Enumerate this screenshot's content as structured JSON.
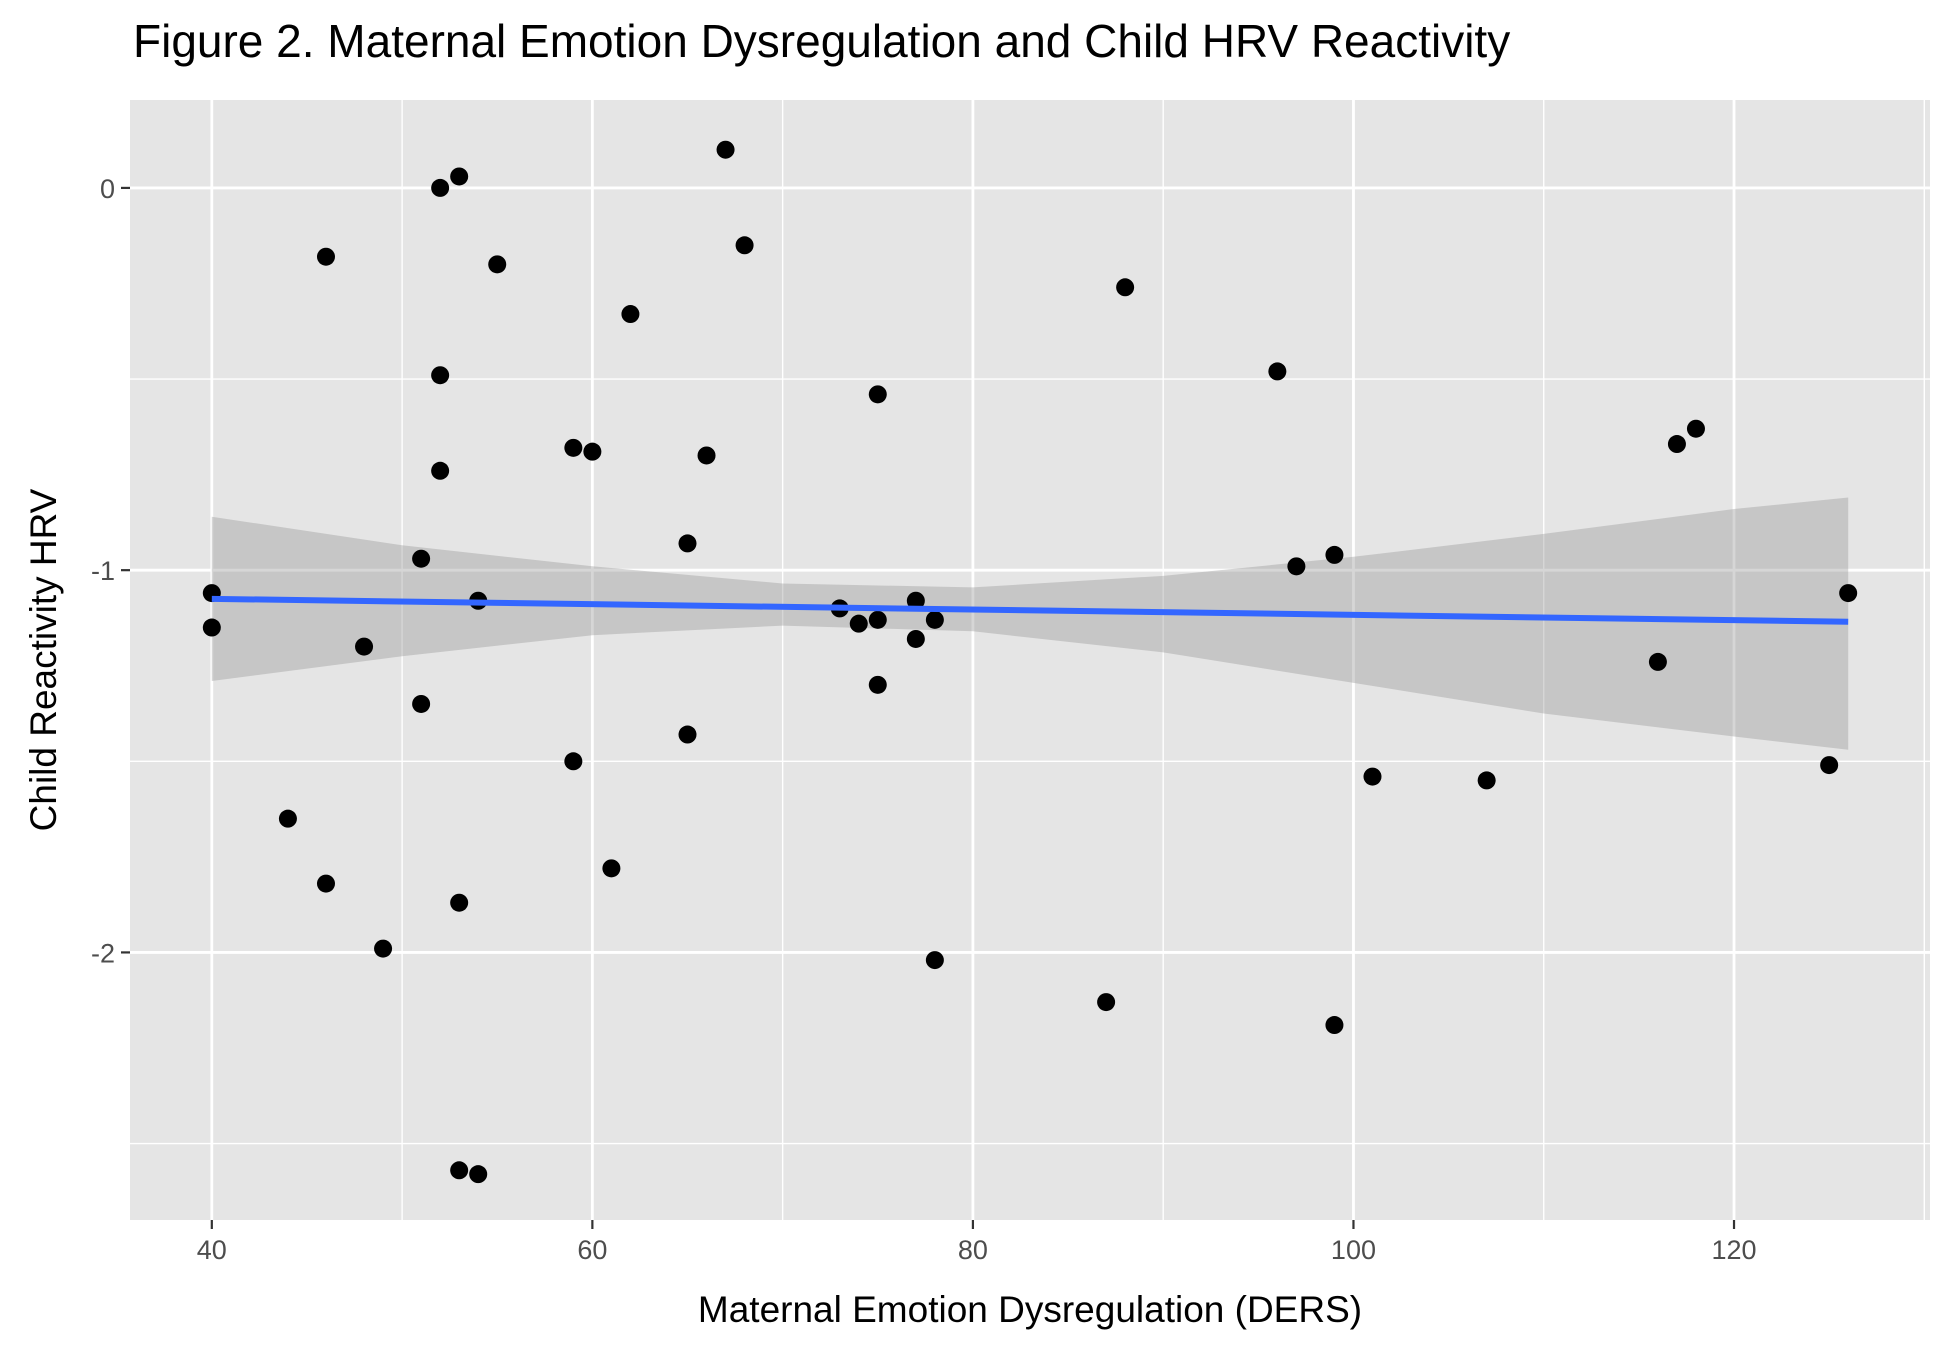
{
  "chart_data": {
    "type": "scatter",
    "title": "Figure 2. Maternal Emotion Dysregulation and Child HRV Reactivity",
    "xlabel": "Maternal Emotion Dysregulation (DERS)",
    "ylabel": "Child Reactivity HRV",
    "xlim": [
      35.7,
      130.3
    ],
    "ylim": [
      -2.7,
      0.23
    ],
    "x_ticks": [
      40,
      60,
      80,
      100,
      120
    ],
    "x_tick_labels": [
      "40",
      "60",
      "80",
      "100",
      "120"
    ],
    "y_ticks": [
      0,
      -1,
      -2
    ],
    "y_tick_labels": [
      "0",
      "-1",
      "-2"
    ],
    "x_minor_ticks": [
      50,
      70,
      90,
      110,
      130
    ],
    "y_minor_ticks": [
      -0.5,
      -1.5,
      -2.5
    ],
    "grid": true,
    "panel_background": "#e5e5e5",
    "grid_color": "#ffffff",
    "point_color": "#000000",
    "points": [
      {
        "x": 40,
        "y": -1.06
      },
      {
        "x": 40,
        "y": -1.15
      },
      {
        "x": 44,
        "y": -1.65
      },
      {
        "x": 46,
        "y": -0.18
      },
      {
        "x": 46,
        "y": -1.82
      },
      {
        "x": 48,
        "y": -1.2
      },
      {
        "x": 49,
        "y": -1.99
      },
      {
        "x": 51,
        "y": -0.97
      },
      {
        "x": 51,
        "y": -1.35
      },
      {
        "x": 52,
        "y": 0.0
      },
      {
        "x": 52,
        "y": -0.49
      },
      {
        "x": 52,
        "y": -0.74
      },
      {
        "x": 53,
        "y": 0.03
      },
      {
        "x": 53,
        "y": -1.87
      },
      {
        "x": 53,
        "y": -2.57
      },
      {
        "x": 54,
        "y": -1.08
      },
      {
        "x": 54,
        "y": -2.58
      },
      {
        "x": 55,
        "y": -0.2
      },
      {
        "x": 59,
        "y": -0.68
      },
      {
        "x": 59,
        "y": -1.5
      },
      {
        "x": 60,
        "y": -0.69
      },
      {
        "x": 61,
        "y": -1.78
      },
      {
        "x": 62,
        "y": -0.33
      },
      {
        "x": 65,
        "y": -0.93
      },
      {
        "x": 65,
        "y": -1.43
      },
      {
        "x": 66,
        "y": -0.7
      },
      {
        "x": 67,
        "y": 0.1
      },
      {
        "x": 68,
        "y": -0.15
      },
      {
        "x": 73,
        "y": -1.1
      },
      {
        "x": 74,
        "y": -1.14
      },
      {
        "x": 75,
        "y": -0.54
      },
      {
        "x": 75,
        "y": -1.13
      },
      {
        "x": 75,
        "y": -1.3
      },
      {
        "x": 77,
        "y": -1.08
      },
      {
        "x": 77,
        "y": -1.18
      },
      {
        "x": 78,
        "y": -1.13
      },
      {
        "x": 78,
        "y": -2.02
      },
      {
        "x": 87,
        "y": -2.13
      },
      {
        "x": 88,
        "y": -0.26
      },
      {
        "x": 96,
        "y": -0.48
      },
      {
        "x": 97,
        "y": -0.99
      },
      {
        "x": 99,
        "y": -0.96
      },
      {
        "x": 99,
        "y": -2.19
      },
      {
        "x": 101,
        "y": -1.54
      },
      {
        "x": 107,
        "y": -1.55
      },
      {
        "x": 116,
        "y": -1.24
      },
      {
        "x": 117,
        "y": -0.67
      },
      {
        "x": 118,
        "y": -0.63
      },
      {
        "x": 125,
        "y": -1.51
      },
      {
        "x": 126,
        "y": -1.06
      }
    ],
    "regression_line": {
      "color": "#3366ff",
      "x": [
        40,
        126
      ],
      "y": [
        -1.075,
        -1.135
      ]
    },
    "confidence_band": {
      "color": "#bdbdbd",
      "x": [
        40,
        50,
        60,
        70,
        80,
        90,
        100,
        110,
        120,
        126
      ],
      "lower": [
        -1.29,
        -1.225,
        -1.17,
        -1.145,
        -1.16,
        -1.215,
        -1.295,
        -1.375,
        -1.435,
        -1.47
      ],
      "upper": [
        -0.86,
        -0.935,
        -0.99,
        -1.035,
        -1.045,
        -1.015,
        -0.965,
        -0.905,
        -0.84,
        -0.81
      ]
    }
  }
}
